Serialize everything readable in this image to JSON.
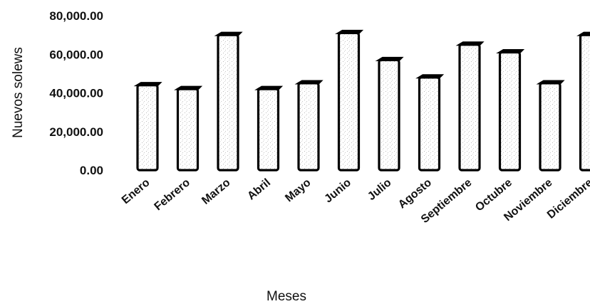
{
  "chart_data": {
    "type": "bar",
    "title": "",
    "xlabel": "Meses",
    "ylabel": "Nuevos solews",
    "ylim": [
      0,
      80000
    ],
    "yticks": [
      "80,000.00",
      "60,000.00",
      "40,000.00",
      "20,000.00",
      "0.00"
    ],
    "ytick_values": [
      80000,
      60000,
      40000,
      20000,
      0
    ],
    "categories": [
      "Enero",
      "Febrero",
      "Marzo",
      "Abril",
      "Mayo",
      "Junio",
      "Julio",
      "Agosto",
      "Septiembre",
      "Octubre",
      "Noviembre",
      "Diciembre"
    ],
    "values": [
      44000,
      42000,
      70000,
      42000,
      45000,
      71000,
      57000,
      48000,
      65000,
      61000,
      45000,
      70000
    ],
    "grid": false,
    "legend": "none",
    "bar_color": "#ffffff",
    "outline_color": "#000000"
  }
}
